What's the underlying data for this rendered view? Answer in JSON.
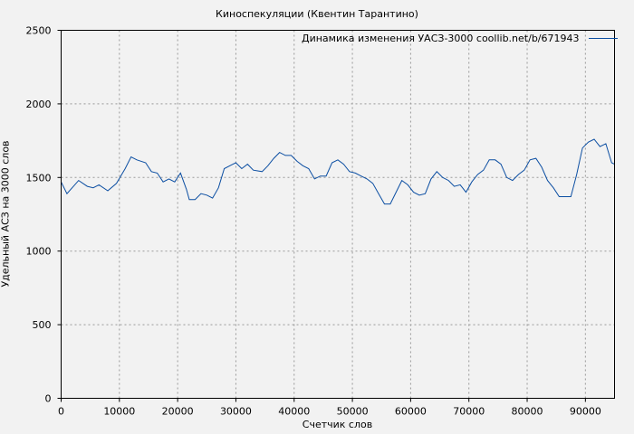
{
  "chart_data": {
    "type": "line",
    "title": "Киноспекуляции (Квентин Тарантино)",
    "xlabel": "Счетчик слов",
    "ylabel": "Удельный АСЗ на 3000 слов",
    "xlim": [
      0,
      95000
    ],
    "ylim": [
      0,
      2500
    ],
    "grid": true,
    "legend_position": "upper right",
    "x_ticks": [
      "0",
      "10000",
      "20000",
      "30000",
      "40000",
      "50000",
      "60000",
      "70000",
      "80000",
      "90000"
    ],
    "y_ticks": [
      "0",
      "500",
      "1000",
      "1500",
      "2000",
      "2500"
    ],
    "series": [
      {
        "name": "Динамика изменения УАСЗ-3000 coollib.net/b/671943",
        "color": "#0b4ea2",
        "x": [
          0,
          1000,
          3000,
          4500,
          5500,
          6500,
          8000,
          9500,
          11000,
          12000,
          13000,
          14500,
          15500,
          16500,
          17500,
          18500,
          19500,
          20500,
          21500,
          22000,
          23000,
          24000,
          25000,
          26000,
          27000,
          28000,
          29500,
          30000,
          31000,
          32000,
          33000,
          34500,
          35500,
          36500,
          37500,
          38500,
          39500,
          40500,
          41500,
          42500,
          43500,
          44500,
          45500,
          46500,
          47500,
          48500,
          49500,
          50500,
          51500,
          52500,
          53500,
          54500,
          55500,
          56500,
          57500,
          58500,
          59500,
          60500,
          61500,
          62500,
          63500,
          64500,
          65500,
          66500,
          67500,
          68500,
          69500,
          70500,
          71500,
          72500,
          73500,
          74500,
          75500,
          76500,
          77500,
          78500,
          79500,
          80500,
          81500,
          82500,
          83500,
          84500,
          85500,
          86500,
          87500,
          88500,
          89500,
          90500,
          91500,
          92500,
          93500,
          94500,
          95000
        ],
        "y": [
          1470,
          1390,
          1480,
          1440,
          1430,
          1450,
          1410,
          1460,
          1560,
          1640,
          1620,
          1600,
          1540,
          1530,
          1470,
          1490,
          1470,
          1530,
          1420,
          1350,
          1350,
          1390,
          1380,
          1360,
          1430,
          1560,
          1590,
          1600,
          1560,
          1590,
          1550,
          1540,
          1580,
          1630,
          1670,
          1650,
          1650,
          1610,
          1580,
          1560,
          1490,
          1510,
          1510,
          1600,
          1620,
          1590,
          1540,
          1530,
          1510,
          1490,
          1460,
          1390,
          1320,
          1320,
          1400,
          1480,
          1450,
          1400,
          1380,
          1390,
          1490,
          1540,
          1500,
          1480,
          1440,
          1450,
          1400,
          1470,
          1520,
          1550,
          1620,
          1620,
          1590,
          1500,
          1480,
          1520,
          1550,
          1620,
          1630,
          1570,
          1480,
          1430,
          1370,
          1370,
          1370,
          1520,
          1700,
          1740,
          1760,
          1710,
          1730,
          1600,
          1590
        ]
      }
    ]
  }
}
